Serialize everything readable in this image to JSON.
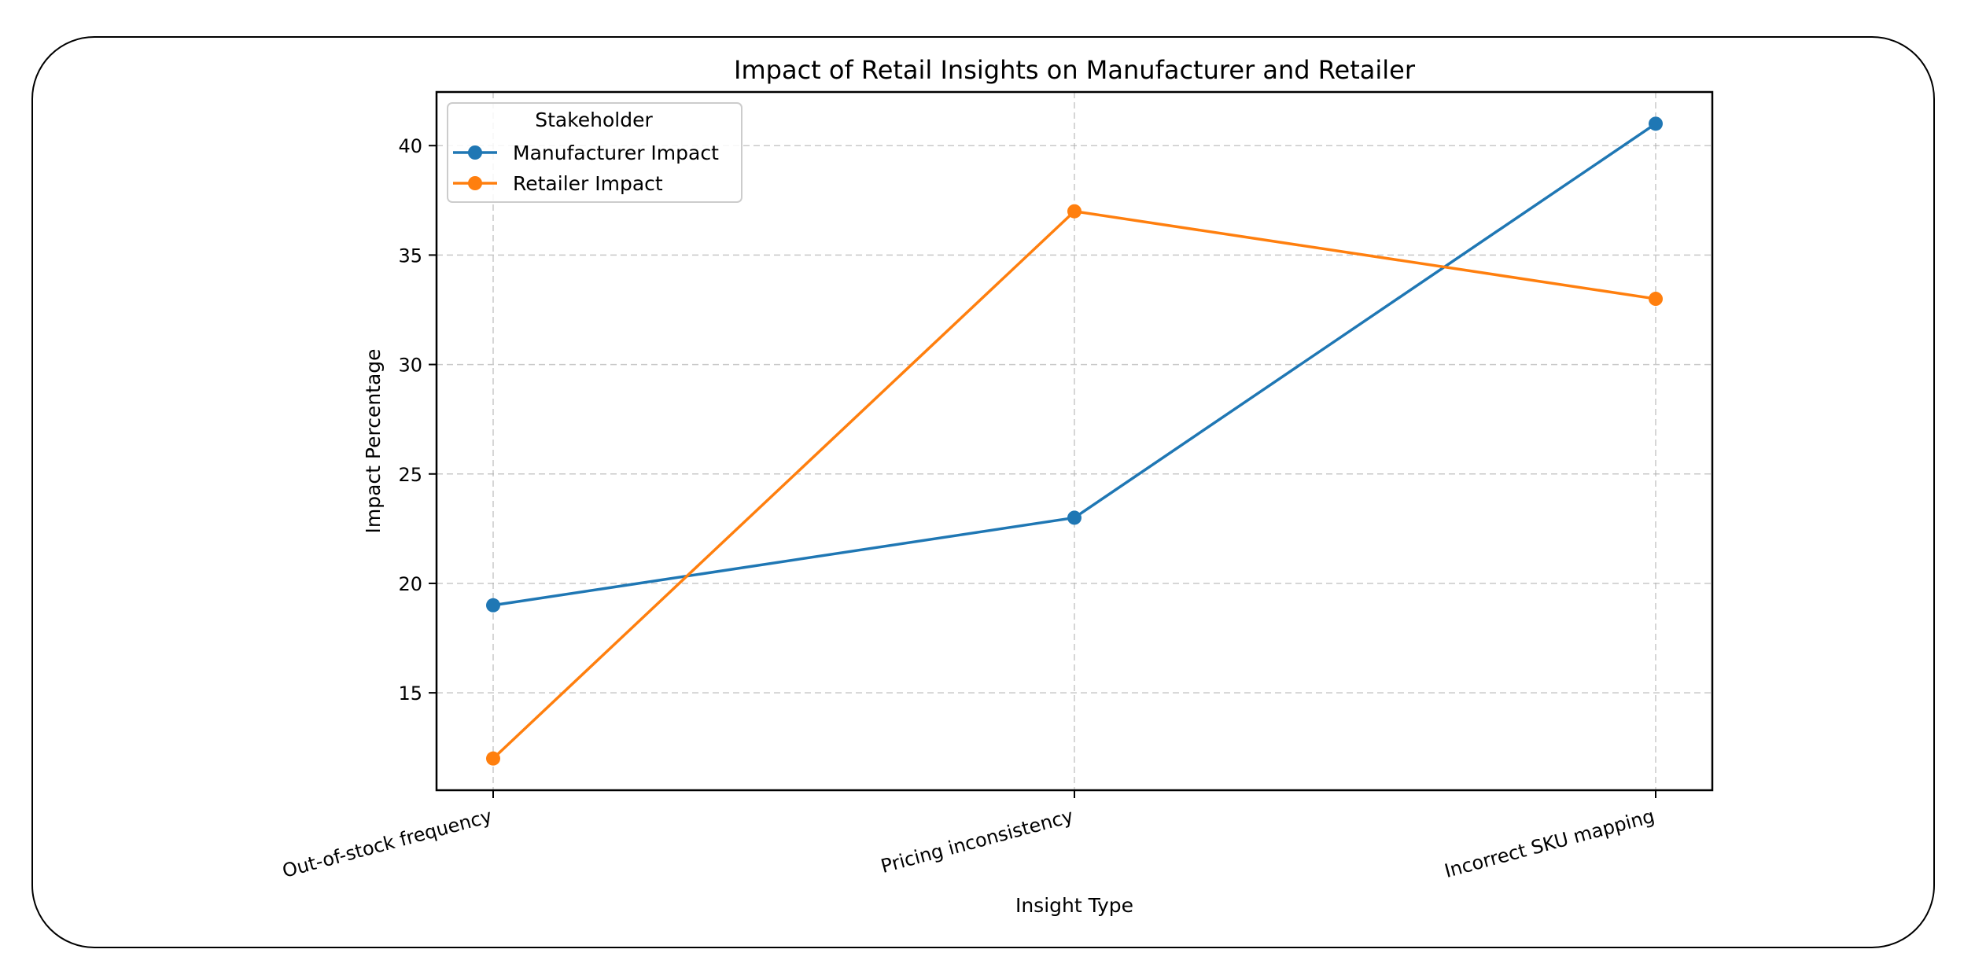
{
  "chart_data": {
    "type": "line",
    "title": "Impact of Retail Insights on Manufacturer and Retailer",
    "xlabel": "Insight Type",
    "ylabel": "Impact Percentage",
    "categories": [
      "Out-of-stock frequency",
      "Pricing inconsistency",
      "Incorrect SKU mapping"
    ],
    "series": [
      {
        "name": "Manufacturer Impact",
        "color": "#1f77b4",
        "values": [
          19,
          23,
          41
        ]
      },
      {
        "name": "Retailer Impact",
        "color": "#ff7f0e",
        "values": [
          12,
          37,
          33
        ]
      }
    ],
    "yticks": [
      15,
      20,
      25,
      30,
      35,
      40
    ],
    "ylim": [
      10.55,
      42.45
    ],
    "grid": true,
    "legend": {
      "title": "Stakeholder",
      "position": "upper left"
    },
    "xtick_rotation": 15
  }
}
